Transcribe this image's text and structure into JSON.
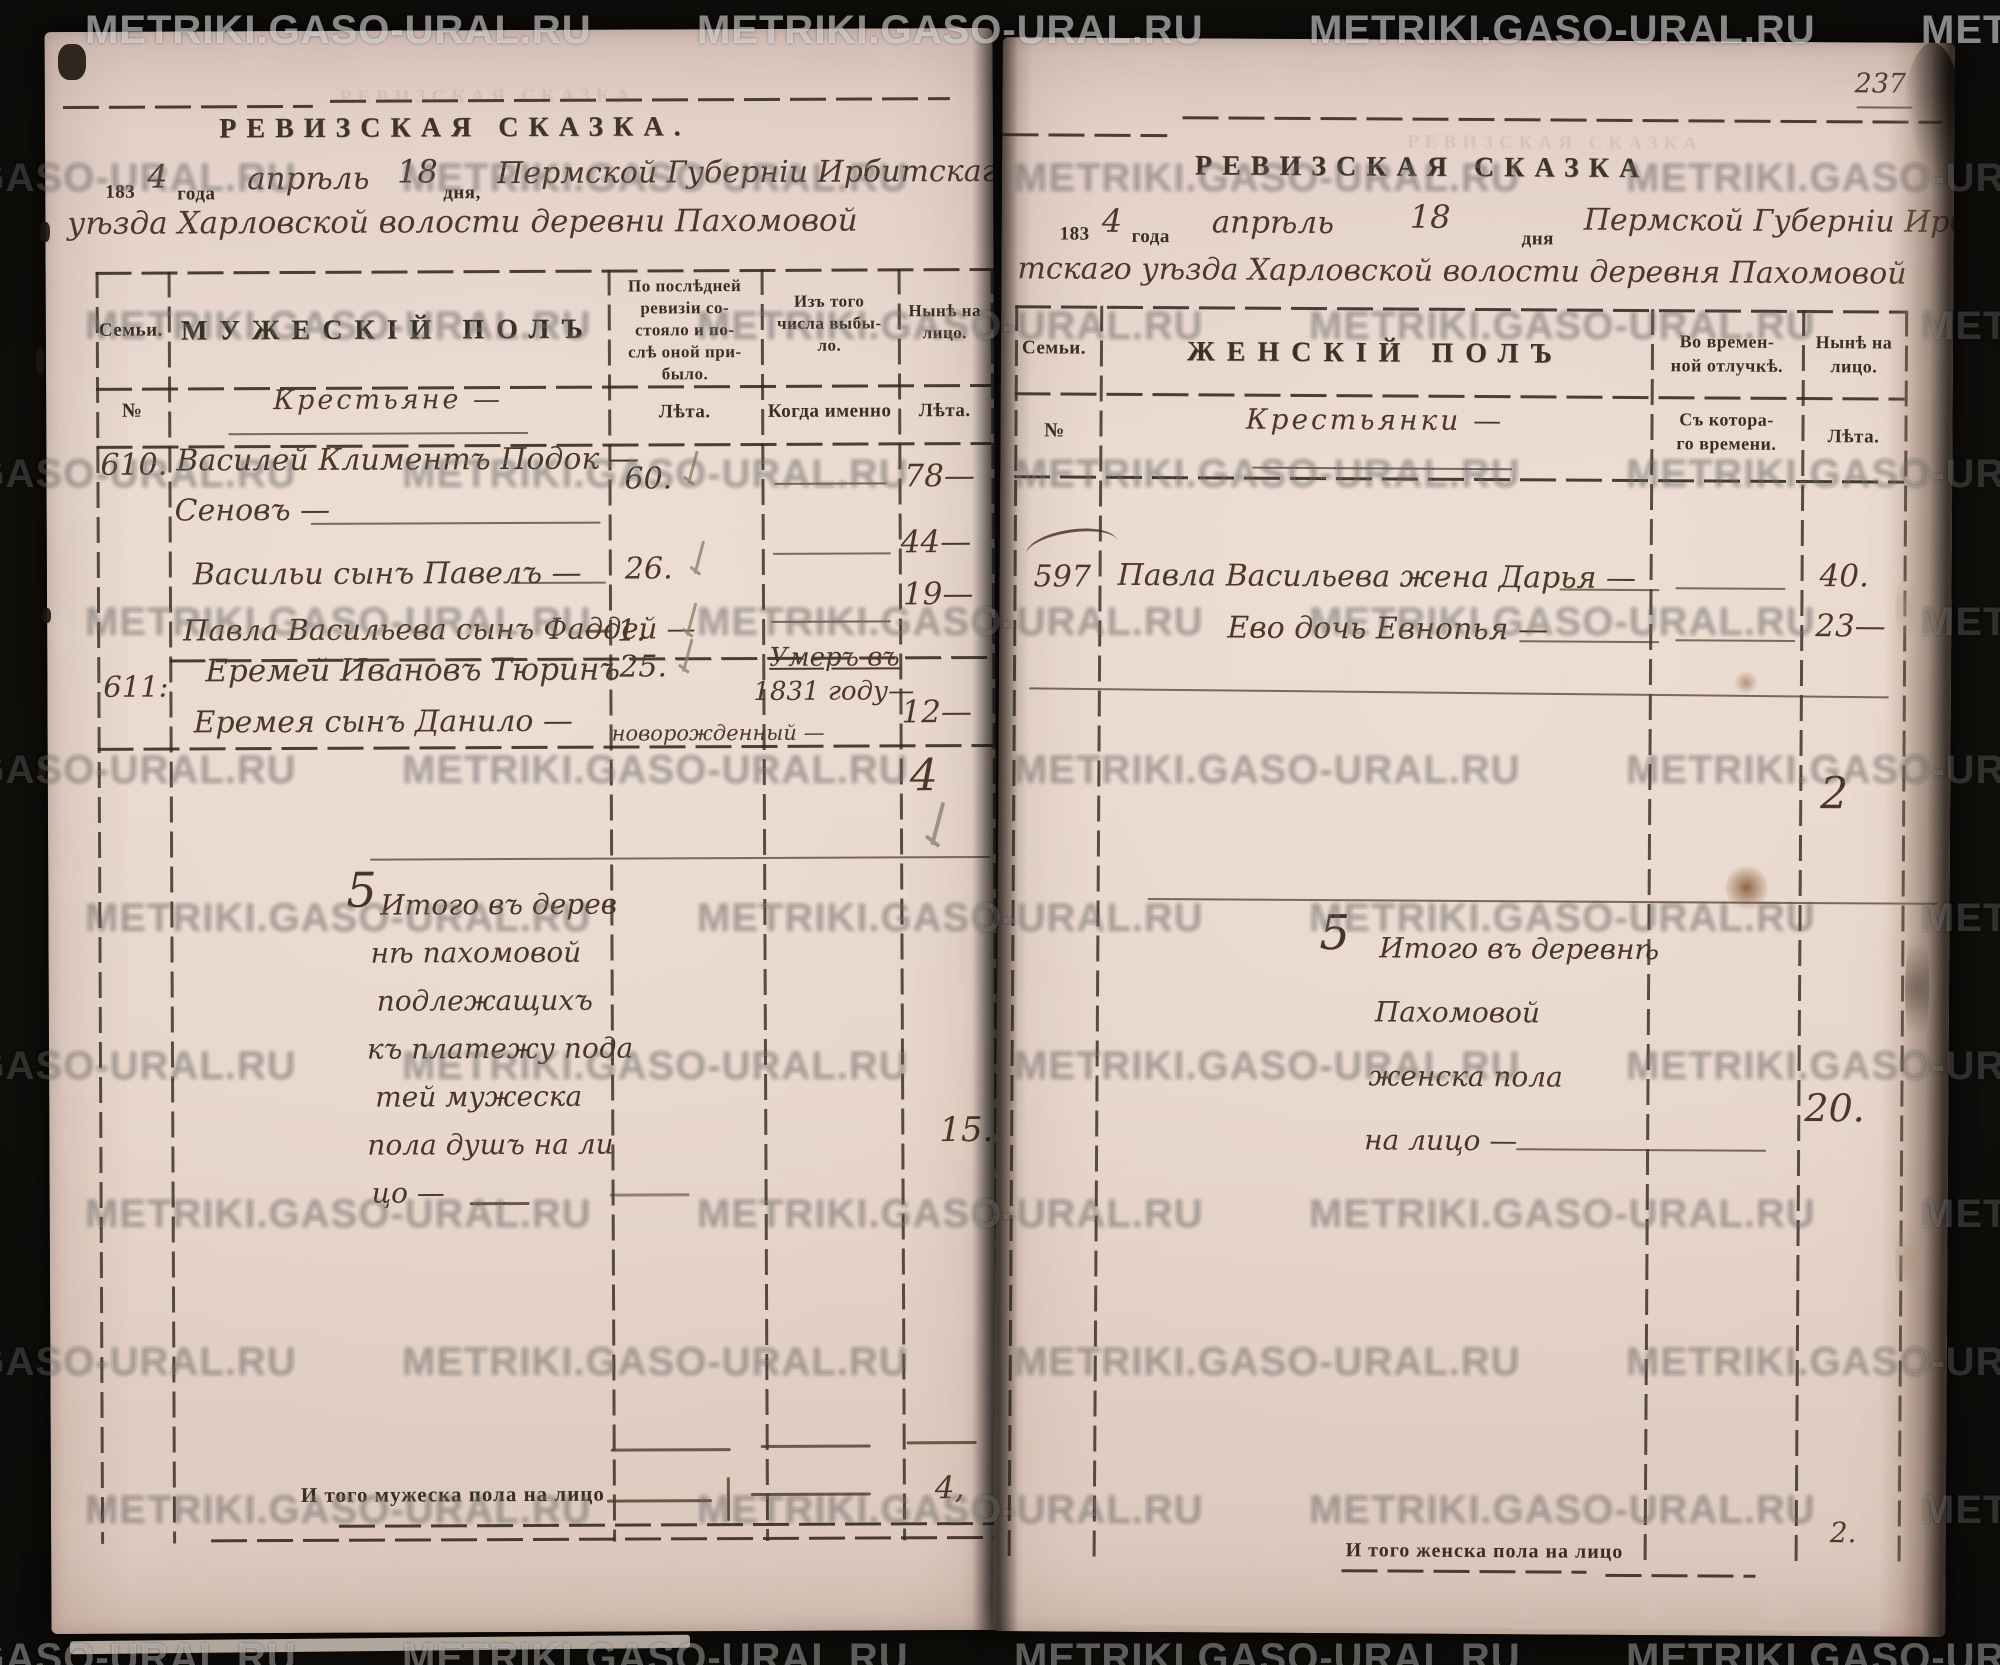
{
  "photo": {
    "watermark": "METRIKI.GASO-URAL.RU",
    "page_number": "237"
  },
  "left": {
    "title": "РЕВИЗСКАЯ СКАЗКА.",
    "date": {
      "p1": "183",
      "year": "4",
      "p2": "года",
      "month": "апрѣль",
      "day": "18",
      "p3": "дня,",
      "place1": "Пермской Губерніи Ирбитскаго",
      "place2": "уѣзда Харловской волости деревни Пахомовой"
    },
    "header": {
      "family": "Семьи.",
      "gender": "МУЖЕСКІЙ ПОЛЪ",
      "col_prev": "По послѣдней\nревизіи со-\nстояло и по-\nслѣ оной при-\nбыло.",
      "col_left": "Изъ того\nчисла выбы-\nло.",
      "col_now": "Нынѣ на\nлицо.",
      "sub_no": "№",
      "sub_class": "Крестьяне —",
      "sub_prev": "Лѣта.",
      "sub_when": "Когда именно",
      "sub_now": "Лѣта."
    },
    "rows": [
      {
        "no": "610.",
        "name": "Василей Климентъ Подок —",
        "name2": "Сеновъ —",
        "prev": "60.",
        "now": "78—"
      },
      {
        "name": "Васильи сынъ Павелъ —",
        "prev": "26.",
        "now": "44—"
      },
      {
        "name": "Павла Васильева сынъ Фаддей —",
        "prev": "1.",
        "now": "19—"
      },
      {
        "no": "611:",
        "name": "Еремей Ивановъ Тюринъ",
        "prev": "25.",
        "when1": "Умеръ въ",
        "when2": "1831 году—"
      },
      {
        "name": "Еремея сынъ Данило —",
        "prev": "новорожденный —",
        "now": "12—"
      }
    ],
    "tally_now": "4",
    "summary_flourish": "5",
    "summary_lines": [
      "Итого въ дерев",
      "нѣ пахомовой",
      "подлежащихъ",
      "къ платежу пода",
      "тей мужеска",
      "пола душъ на ли",
      "цо —"
    ],
    "summary_total": "15.",
    "footer_label": "И того мужеска пола на лицо",
    "footer_total": "4,"
  },
  "right": {
    "title": "РЕВИЗСКАЯ СКАЗКА",
    "date": {
      "p1": "183",
      "year": "4",
      "p2": "года",
      "month": "апрѣль",
      "day": "18",
      "p3": "дня",
      "place1": "Пермской Губерніи Ирби-",
      "place2": "тскаго уѣзда Харловской волости деревня Пахомовой"
    },
    "header": {
      "family": "Семьи.",
      "gender": "ЖЕНСКІЙ ПОЛЪ",
      "col_away": "Во времен-\nной отлучкѣ.",
      "col_now": "Нынѣ на\nлицо.",
      "sub_no": "№",
      "sub_class": "Крестьянки —",
      "sub_away": "Съ котора-\nго времени.",
      "sub_now": "Лѣта."
    },
    "rows": [
      {
        "no": "597",
        "name": "Павла Васильева жена Дарья —",
        "now": "40."
      },
      {
        "name": "Ево дочь Евнопья —",
        "now": "23—"
      }
    ],
    "tally_now": "2",
    "summary_flourish": "5",
    "summary_lines": [
      "Итого въ деревнѣ",
      "Пахомовой",
      "женска пола",
      "на лицо —"
    ],
    "summary_total": "20.",
    "footer_label": "И того женска пола на лицо",
    "footer_total": "2."
  }
}
